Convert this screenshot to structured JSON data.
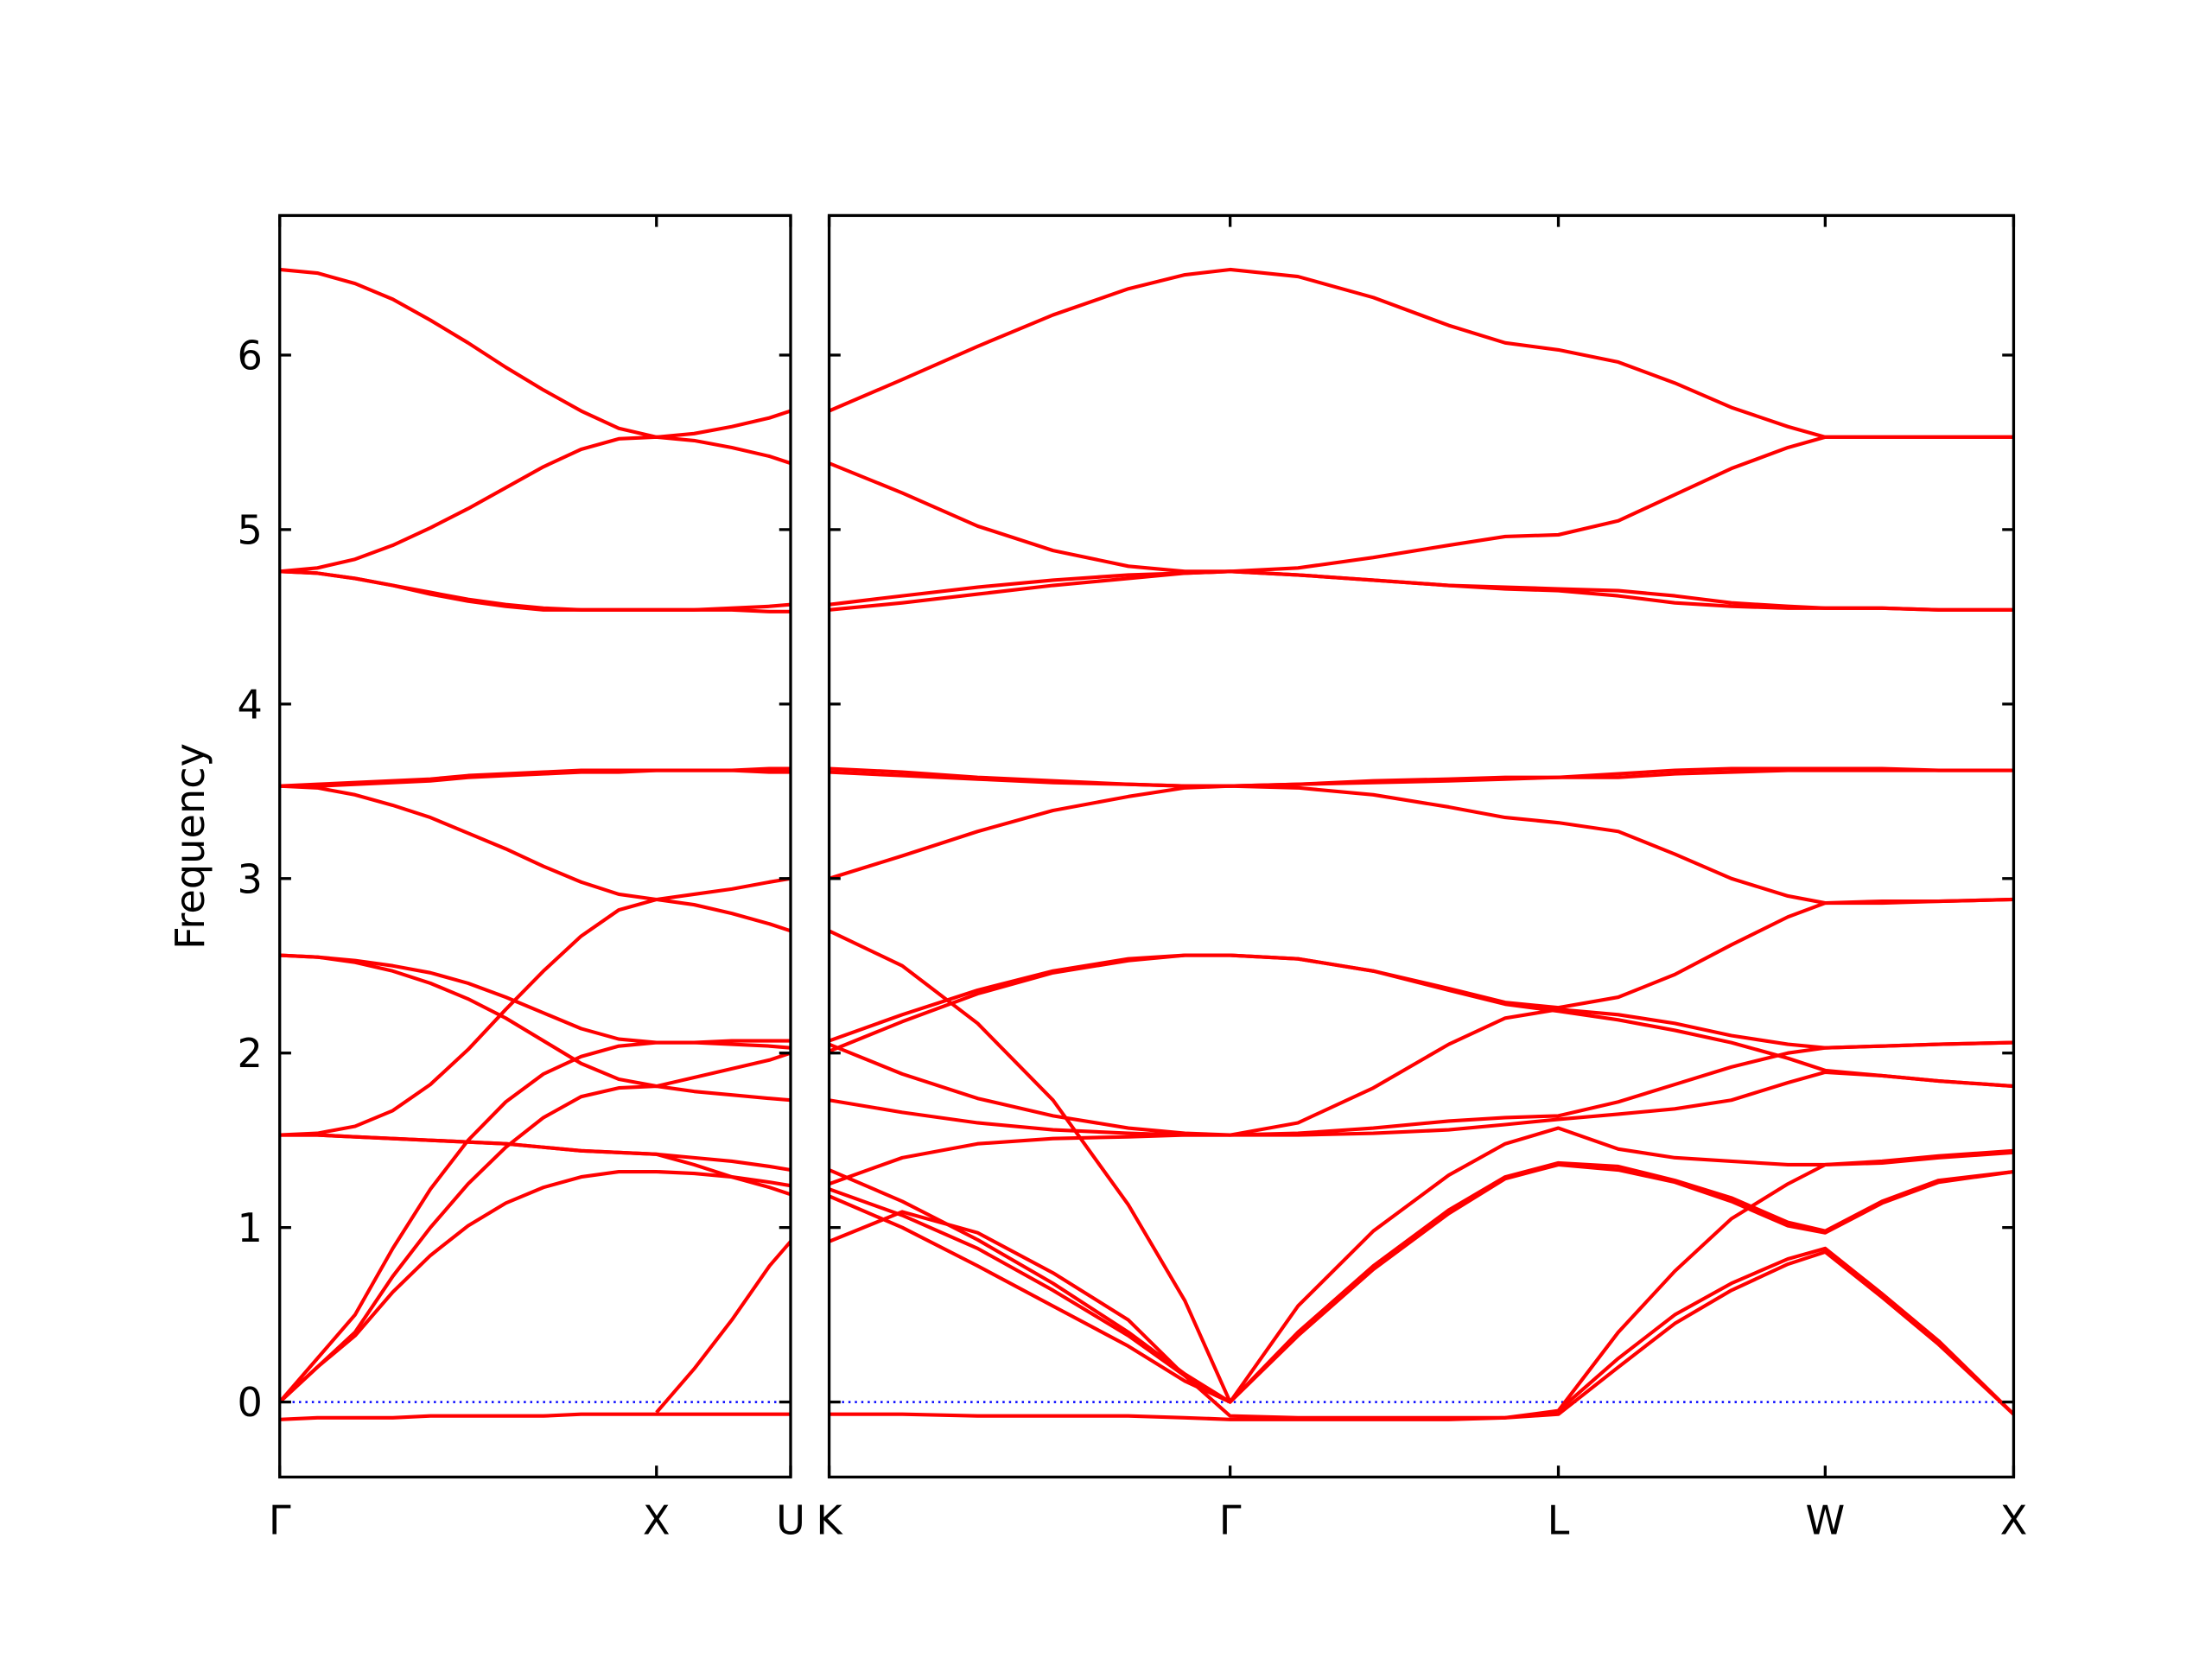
{
  "chart_data": [
    {
      "type": "line",
      "y_label": "Frequency",
      "color": "#ff0000",
      "xlim": [
        0,
        1.356
      ],
      "xticks": [
        {
          "value": 0,
          "label": "Γ"
        },
        {
          "value": 1.0,
          "label": "X"
        },
        {
          "value": 1.356,
          "label": "U"
        }
      ],
      "ylim": [
        -0.43,
        6.8
      ],
      "yticks": [
        0,
        1,
        2,
        3,
        4,
        5,
        6
      ],
      "hline": {
        "y": 0,
        "color": "#0000ff",
        "style": "dotted"
      },
      "x": [
        0,
        0.1,
        0.2,
        0.3,
        0.4,
        0.5,
        0.6,
        0.7,
        0.8,
        0.9,
        1.0,
        1.1,
        1.2,
        1.3,
        1.356
      ],
      "series": [
        {
          "values": [
            6.49,
            6.47,
            6.41,
            6.32,
            6.2,
            6.07,
            5.93,
            5.8,
            5.68,
            5.58,
            5.53,
            5.55,
            5.59,
            5.64,
            5.68
          ]
        },
        {
          "values": [
            4.76,
            4.78,
            4.83,
            4.91,
            5.01,
            5.12,
            5.24,
            5.36,
            5.46,
            5.52,
            5.53,
            5.51,
            5.47,
            5.42,
            5.38
          ]
        },
        {
          "values": [
            4.76,
            4.75,
            4.72,
            4.68,
            4.64,
            4.6,
            4.57,
            4.55,
            4.54,
            4.54,
            4.54,
            4.54,
            4.55,
            4.56,
            4.57
          ]
        },
        {
          "values": [
            4.76,
            4.75,
            4.72,
            4.68,
            4.63,
            4.59,
            4.56,
            4.54,
            4.54,
            4.54,
            4.54,
            4.54,
            4.54,
            4.53,
            4.53
          ]
        },
        {
          "values": [
            3.53,
            3.54,
            3.55,
            3.56,
            3.57,
            3.59,
            3.6,
            3.61,
            3.62,
            3.62,
            3.62,
            3.62,
            3.62,
            3.63,
            3.63
          ]
        },
        {
          "values": [
            3.53,
            3.53,
            3.54,
            3.55,
            3.56,
            3.58,
            3.59,
            3.6,
            3.61,
            3.61,
            3.62,
            3.62,
            3.62,
            3.61,
            3.61
          ]
        },
        {
          "values": [
            3.53,
            3.52,
            3.48,
            3.42,
            3.35,
            3.26,
            3.17,
            3.07,
            2.98,
            2.91,
            2.88,
            2.91,
            2.94,
            2.98,
            3.0
          ]
        },
        {
          "values": [
            1.53,
            1.54,
            1.58,
            1.67,
            1.82,
            2.02,
            2.25,
            2.47,
            2.67,
            2.82,
            2.88,
            2.85,
            2.8,
            2.74,
            2.7
          ]
        },
        {
          "values": [
            2.56,
            2.55,
            2.53,
            2.5,
            2.46,
            2.4,
            2.32,
            2.23,
            2.14,
            2.08,
            2.06,
            2.06,
            2.07,
            2.07,
            2.07
          ]
        },
        {
          "values": [
            2.56,
            2.55,
            2.52,
            2.47,
            2.4,
            2.31,
            2.2,
            2.07,
            1.94,
            1.85,
            1.81,
            1.86,
            1.91,
            1.96,
            2.0
          ]
        },
        {
          "values": [
            0,
            0.25,
            0.5,
            0.88,
            1.22,
            1.5,
            1.72,
            1.88,
            1.98,
            2.04,
            2.06,
            2.06,
            2.05,
            2.04,
            2.03
          ]
        },
        {
          "values": [
            0,
            0.2,
            0.4,
            0.72,
            1.0,
            1.25,
            1.46,
            1.63,
            1.75,
            1.8,
            1.81,
            1.78,
            1.76,
            1.74,
            1.73
          ]
        },
        {
          "values": [
            1.53,
            1.53,
            1.52,
            1.51,
            1.5,
            1.49,
            1.48,
            1.46,
            1.44,
            1.43,
            1.42,
            1.4,
            1.38,
            1.35,
            1.33
          ]
        },
        {
          "values": [
            1.53,
            1.53,
            1.52,
            1.51,
            1.5,
            1.49,
            1.48,
            1.46,
            1.44,
            1.43,
            1.42,
            1.36,
            1.29,
            1.23,
            1.19
          ]
        },
        {
          "values": [
            0,
            0.2,
            0.38,
            0.63,
            0.84,
            1.01,
            1.14,
            1.23,
            1.29,
            1.32,
            1.32,
            1.31,
            1.29,
            1.26,
            1.24
          ]
        },
        {
          "values": [
            -0.1,
            -0.09,
            -0.09,
            -0.09,
            -0.08,
            -0.08,
            -0.08,
            -0.08,
            -0.07,
            -0.07,
            -0.07,
            -0.07,
            -0.07,
            -0.07,
            -0.07
          ]
        },
        {
          "values": [
            null,
            null,
            null,
            null,
            null,
            null,
            null,
            null,
            null,
            null,
            -0.06,
            0.19,
            0.47,
            0.78,
            0.92
          ]
        }
      ]
    },
    {
      "type": "line",
      "color": "#ff0000",
      "ytick_labels": false,
      "xlim": [
        1.356,
        4.499
      ],
      "xticks": [
        {
          "value": 1.356,
          "label": "K"
        },
        {
          "value": 2.42,
          "label": "Γ"
        },
        {
          "value": 3.291,
          "label": "L"
        },
        {
          "value": 3.999,
          "label": "W"
        },
        {
          "value": 4.499,
          "label": "X"
        }
      ],
      "ylim": [
        -0.43,
        6.8
      ],
      "yticks": [
        0,
        1,
        2,
        3,
        4,
        5,
        6
      ],
      "hline": {
        "y": 0,
        "color": "#0000ff",
        "style": "dotted"
      },
      "x": [
        1.356,
        1.55,
        1.75,
        1.95,
        2.15,
        2.3,
        2.42,
        2.6,
        2.8,
        3.0,
        3.15,
        3.291,
        3.45,
        3.6,
        3.75,
        3.9,
        3.999,
        4.15,
        4.3,
        4.499
      ],
      "series": [
        {
          "values": [
            5.68,
            5.86,
            6.05,
            6.23,
            6.38,
            6.46,
            6.49,
            6.45,
            6.33,
            6.17,
            6.07,
            6.03,
            5.96,
            5.84,
            5.7,
            5.59,
            5.53,
            5.53,
            5.53,
            5.53
          ]
        },
        {
          "values": [
            5.38,
            5.21,
            5.02,
            4.88,
            4.79,
            4.76,
            4.76,
            4.78,
            4.84,
            4.91,
            4.96,
            4.97,
            5.05,
            5.2,
            5.35,
            5.47,
            5.53,
            5.53,
            5.53,
            5.53
          ]
        },
        {
          "values": [
            4.57,
            4.62,
            4.67,
            4.71,
            4.74,
            4.75,
            4.76,
            4.74,
            4.71,
            4.68,
            4.67,
            4.66,
            4.65,
            4.62,
            4.58,
            4.56,
            4.55,
            4.55,
            4.54,
            4.54
          ]
        },
        {
          "values": [
            4.54,
            4.58,
            4.63,
            4.68,
            4.72,
            4.75,
            4.76,
            4.74,
            4.71,
            4.68,
            4.66,
            4.65,
            4.62,
            4.58,
            4.56,
            4.55,
            4.55,
            4.55,
            4.54,
            4.54
          ]
        },
        {
          "values": [
            3.63,
            3.61,
            3.58,
            3.56,
            3.54,
            3.53,
            3.53,
            3.54,
            3.56,
            3.57,
            3.58,
            3.58,
            3.6,
            3.62,
            3.63,
            3.63,
            3.63,
            3.63,
            3.62,
            3.62
          ]
        },
        {
          "values": [
            3.61,
            3.59,
            3.57,
            3.55,
            3.54,
            3.53,
            3.53,
            3.54,
            3.55,
            3.56,
            3.57,
            3.58,
            3.58,
            3.6,
            3.61,
            3.62,
            3.62,
            3.62,
            3.62,
            3.62
          ]
        },
        {
          "values": [
            3.0,
            3.13,
            3.27,
            3.39,
            3.47,
            3.52,
            3.53,
            3.52,
            3.48,
            3.41,
            3.35,
            3.32,
            3.27,
            3.14,
            3.0,
            2.9,
            2.86,
            2.86,
            2.87,
            2.88
          ]
        },
        {
          "values": [
            2.07,
            2.22,
            2.36,
            2.47,
            2.54,
            2.56,
            2.56,
            2.54,
            2.47,
            2.37,
            2.29,
            2.26,
            2.32,
            2.45,
            2.62,
            2.78,
            2.86,
            2.87,
            2.87,
            2.88
          ]
        },
        {
          "values": [
            2.01,
            2.18,
            2.34,
            2.46,
            2.53,
            2.56,
            2.56,
            2.54,
            2.47,
            2.36,
            2.28,
            2.24,
            2.19,
            2.13,
            2.06,
            1.97,
            1.9,
            1.87,
            1.84,
            1.81
          ]
        },
        {
          "values": [
            2.05,
            1.88,
            1.74,
            1.64,
            1.57,
            1.54,
            1.53,
            1.6,
            1.8,
            2.05,
            2.2,
            2.25,
            2.22,
            2.17,
            2.1,
            2.05,
            2.03,
            2.04,
            2.05,
            2.06
          ]
        },
        {
          "values": [
            1.73,
            1.66,
            1.6,
            1.56,
            1.54,
            1.53,
            1.53,
            1.54,
            1.57,
            1.61,
            1.63,
            1.64,
            1.72,
            1.82,
            1.92,
            2.0,
            2.03,
            2.04,
            2.05,
            2.06
          ]
        },
        {
          "values": [
            1.25,
            1.4,
            1.48,
            1.51,
            1.52,
            1.53,
            1.53,
            1.53,
            1.54,
            1.56,
            1.59,
            1.62,
            1.65,
            1.68,
            1.73,
            1.83,
            1.89,
            1.87,
            1.84,
            1.81
          ]
        },
        {
          "values": [
            2.7,
            2.5,
            2.17,
            1.73,
            1.13,
            0.58,
            0,
            null,
            null,
            null,
            null,
            null,
            null,
            null,
            null,
            null,
            null,
            null,
            null,
            null
          ]
        },
        {
          "values": [
            1.33,
            1.15,
            0.93,
            0.68,
            0.4,
            0.16,
            0,
            0.55,
            0.98,
            1.3,
            1.48,
            1.57,
            1.45,
            1.4,
            1.38,
            1.36,
            1.36,
            1.38,
            1.41,
            1.44
          ]
        },
        {
          "values": [
            1.22,
            1.07,
            0.88,
            0.64,
            0.38,
            0.15,
            0,
            0.4,
            0.78,
            1.1,
            1.29,
            1.37,
            1.35,
            1.27,
            1.17,
            1.03,
            0.98,
            1.15,
            1.27,
            1.32
          ]
        },
        {
          "values": [
            1.18,
            1.0,
            0.78,
            0.55,
            0.32,
            0.12,
            0,
            0.38,
            0.76,
            1.08,
            1.28,
            1.36,
            1.33,
            1.26,
            1.15,
            1.01,
            0.97,
            1.14,
            1.26,
            1.32
          ]
        },
        {
          "values": [
            0.92,
            1.09,
            0.97,
            0.74,
            0.47,
            0.15,
            -0.08,
            -0.09,
            -0.09,
            -0.09,
            -0.09,
            -0.07,
            0.2,
            0.45,
            0.64,
            0.79,
            0.86,
            0.6,
            0.33,
            -0.07
          ]
        },
        {
          "values": [
            -0.07,
            -0.07,
            -0.08,
            -0.08,
            -0.08,
            -0.09,
            -0.1,
            -0.1,
            -0.1,
            -0.1,
            -0.09,
            -0.05,
            0.25,
            0.5,
            0.68,
            0.82,
            0.88,
            0.62,
            0.35,
            -0.07
          ]
        },
        {
          "values": [
            null,
            null,
            null,
            null,
            null,
            null,
            null,
            null,
            null,
            null,
            null,
            -0.05,
            0.4,
            0.75,
            1.05,
            1.25,
            1.36,
            1.37,
            1.4,
            1.43
          ]
        }
      ]
    }
  ]
}
